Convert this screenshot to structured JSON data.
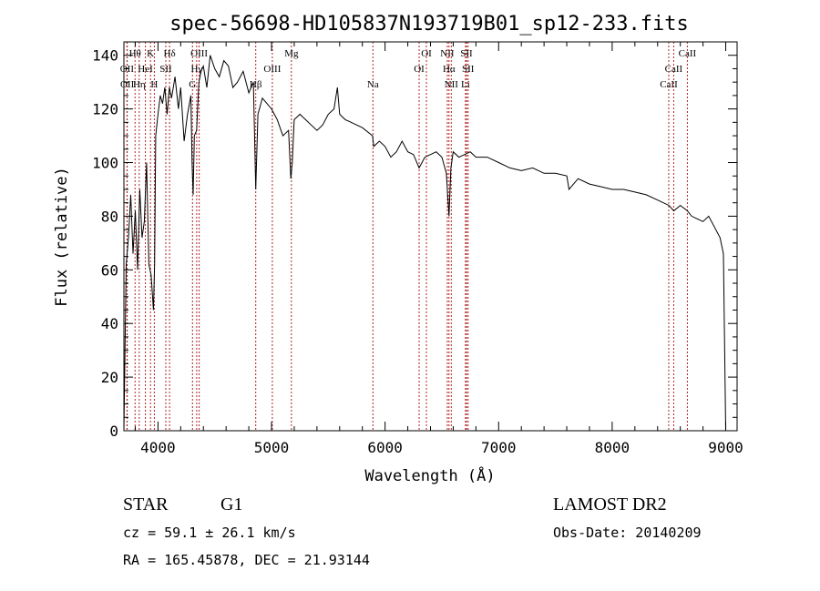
{
  "chart_data": {
    "type": "line",
    "title": "spec-56698-HD105837N193719B01_sp12-233.fits",
    "xlabel": "Wavelength (Å)",
    "ylabel": "Flux (relative)",
    "xlim": [
      3700,
      9100
    ],
    "ylim": [
      0,
      145
    ],
    "x_ticks": [
      4000,
      5000,
      6000,
      7000,
      8000,
      9000
    ],
    "y_ticks": [
      0,
      20,
      40,
      60,
      80,
      100,
      120,
      140
    ],
    "line_color": "#000000",
    "marker_color": "#b22222",
    "series": [
      {
        "x": [
          3700,
          3720,
          3740,
          3760,
          3780,
          3800,
          3820,
          3840,
          3860,
          3880,
          3900,
          3920,
          3940,
          3960,
          3970,
          3980,
          4000,
          4020,
          4040,
          4060,
          4080,
          4100,
          4120,
          4150,
          4180,
          4200,
          4230,
          4260,
          4290,
          4300,
          4310,
          4320,
          4340,
          4360,
          4380,
          4400,
          4430,
          4460,
          4500,
          4540,
          4580,
          4620,
          4660,
          4700,
          4750,
          4800,
          4840,
          4861,
          4880,
          4920,
          4960,
          5000,
          5050,
          5100,
          5150,
          5170,
          5183,
          5200,
          5250,
          5300,
          5350,
          5400,
          5450,
          5500,
          5550,
          5580,
          5600,
          5650,
          5700,
          5800,
          5890,
          5900,
          5950,
          6000,
          6050,
          6100,
          6150,
          6200,
          6250,
          6300,
          6350,
          6400,
          6450,
          6500,
          6540,
          6563,
          6580,
          6600,
          6650,
          6700,
          6750,
          6800,
          6900,
          7000,
          7100,
          7200,
          7300,
          7400,
          7500,
          7600,
          7620,
          7700,
          7800,
          7900,
          8000,
          8100,
          8200,
          8300,
          8400,
          8500,
          8542,
          8600,
          8662,
          8700,
          8800,
          8850,
          8900,
          8950,
          8980,
          9000
        ],
        "y": [
          0,
          62,
          72,
          88,
          66,
          82,
          60,
          90,
          72,
          78,
          100,
          62,
          58,
          45,
          62,
          110,
          118,
          125,
          122,
          128,
          118,
          128,
          124,
          132,
          120,
          128,
          108,
          118,
          125,
          100,
          88,
          110,
          112,
          130,
          134,
          136,
          128,
          140,
          135,
          132,
          138,
          136,
          128,
          130,
          134,
          126,
          130,
          90,
          118,
          124,
          122,
          120,
          116,
          110,
          112,
          94,
          100,
          116,
          118,
          116,
          114,
          112,
          114,
          118,
          120,
          128,
          118,
          116,
          115,
          113,
          110,
          106,
          108,
          106,
          102,
          104,
          108,
          104,
          103,
          98,
          102,
          103,
          104,
          102,
          96,
          80,
          98,
          104,
          102,
          103,
          104,
          102,
          102,
          100,
          98,
          97,
          98,
          96,
          96,
          95,
          90,
          94,
          92,
          91,
          90,
          90,
          89,
          88,
          86,
          84,
          82,
          84,
          82,
          80,
          78,
          80,
          76,
          72,
          66,
          0
        ]
      }
    ],
    "lines": [
      {
        "label": "Hθ",
        "x": 3798,
        "row": 0
      },
      {
        "label": "OII",
        "x": 3727,
        "row": 1
      },
      {
        "label": "OII",
        "x": 3729,
        "row": 2
      },
      {
        "label": "Hη",
        "x": 3835,
        "row": 2
      },
      {
        "label": "HeI",
        "x": 3889,
        "row": 1
      },
      {
        "label": "K",
        "x": 3934,
        "row": 0
      },
      {
        "label": "H",
        "x": 3968,
        "row": 2
      },
      {
        "label": "SII",
        "x": 4069,
        "row": 1
      },
      {
        "label": "Hδ",
        "x": 4102,
        "row": 0
      },
      {
        "label": "OIII",
        "x": 4363,
        "row": 0
      },
      {
        "label": "Hγ",
        "x": 4341,
        "row": 1
      },
      {
        "label": "G",
        "x": 4304,
        "row": 2
      },
      {
        "label": "OIII",
        "x": 5007,
        "row": 1
      },
      {
        "label": "Mg",
        "x": 5175,
        "row": 0
      },
      {
        "label": "Hβ",
        "x": 4861,
        "row": 2
      },
      {
        "label": "Na",
        "x": 5893,
        "row": 2
      },
      {
        "label": "OI",
        "x": 6364,
        "row": 0
      },
      {
        "label": "OI",
        "x": 6300,
        "row": 1
      },
      {
        "label": "NII",
        "x": 6548,
        "row": 0
      },
      {
        "label": "Hα",
        "x": 6563,
        "row": 1
      },
      {
        "label": "NII",
        "x": 6583,
        "row": 2
      },
      {
        "label": "SII",
        "x": 6717,
        "row": 0
      },
      {
        "label": "SII",
        "x": 6731,
        "row": 1
      },
      {
        "label": "Li",
        "x": 6708,
        "row": 2
      },
      {
        "label": "CaII",
        "x": 8662,
        "row": 0
      },
      {
        "label": "CaII",
        "x": 8542,
        "row": 1
      },
      {
        "label": "CaII",
        "x": 8498,
        "row": 2
      }
    ]
  },
  "info": {
    "class": "STAR",
    "subclass": "G1",
    "survey": "LAMOST DR2",
    "redshift": "cz = 59.1 ± 26.1 km/s",
    "obs_date": "Obs-Date: 20140209",
    "coords": "RA = 165.45878, DEC =  21.93144"
  }
}
